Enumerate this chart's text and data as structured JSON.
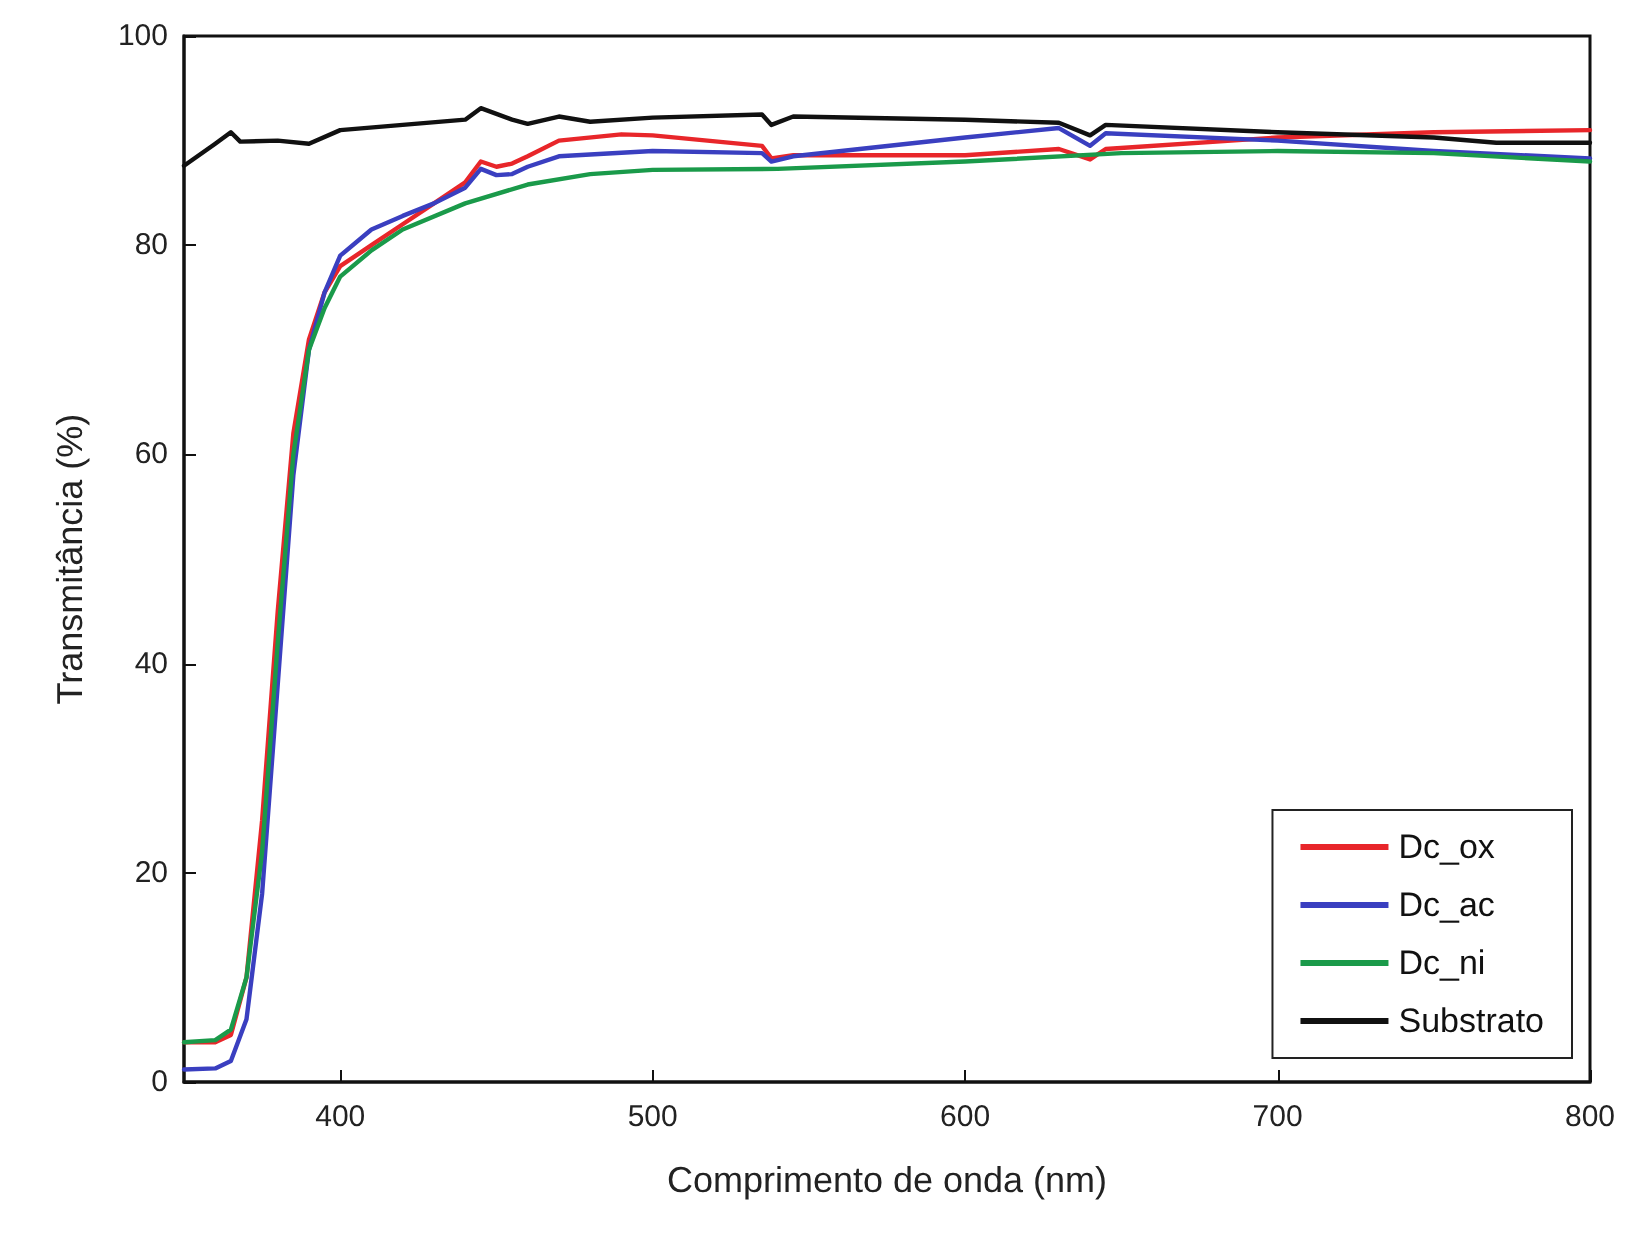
{
  "chart_data": {
    "type": "line",
    "xlabel": "Comprimento de onda (nm)",
    "ylabel": "Transmitância (%)",
    "xlim": [
      350,
      800
    ],
    "xticks": [
      400,
      500,
      600,
      700,
      800
    ],
    "ylim": [
      0,
      100
    ],
    "yticks": [
      0,
      20,
      40,
      60,
      80,
      100
    ],
    "grid": false,
    "legend": "bottom right",
    "marker": "none",
    "line_style": "solid",
    "series": [
      {
        "name": "Dc_ox",
        "color": "#e8262a",
        "x": [
          350,
          360,
          365,
          370,
          375,
          380,
          385,
          390,
          395,
          400,
          410,
          420,
          430,
          440,
          445,
          450,
          455,
          460,
          470,
          490,
          500,
          535,
          538,
          545,
          600,
          630,
          640,
          645,
          700,
          750,
          800
        ],
        "values": [
          3.8,
          3.8,
          4.5,
          10,
          25,
          45,
          62,
          71,
          75.5,
          78,
          80,
          82,
          84,
          86,
          88,
          87.5,
          87.8,
          88.5,
          90,
          90.6,
          90.5,
          89.5,
          88.3,
          88.6,
          88.6,
          89.2,
          88.2,
          89.2,
          90.3,
          90.8,
          91
        ]
      },
      {
        "name": "Dc_ac",
        "color": "#3a3fc0",
        "x": [
          350,
          360,
          365,
          370,
          375,
          380,
          385,
          390,
          395,
          400,
          410,
          420,
          430,
          440,
          445,
          450,
          455,
          460,
          470,
          500,
          535,
          538,
          545,
          600,
          630,
          640,
          645,
          700,
          750,
          800
        ],
        "values": [
          1.2,
          1.3,
          2,
          6,
          18,
          38,
          58,
          70,
          75.5,
          79,
          81.5,
          82.8,
          84,
          85.5,
          87.3,
          86.7,
          86.8,
          87.5,
          88.5,
          89,
          88.8,
          88,
          88.5,
          90.3,
          91.2,
          89.5,
          90.7,
          90,
          89,
          88.3
        ]
      },
      {
        "name": "Dc_ni",
        "color": "#1a9a4a",
        "x": [
          350,
          360,
          365,
          370,
          375,
          380,
          385,
          390,
          395,
          400,
          410,
          420,
          440,
          460,
          480,
          500,
          540,
          600,
          650,
          700,
          750,
          800
        ],
        "values": [
          3.8,
          4,
          5,
          10,
          22,
          42,
          60,
          70,
          74,
          77,
          79.5,
          81.5,
          84,
          85.8,
          86.8,
          87.2,
          87.3,
          88,
          88.8,
          89,
          88.8,
          88
        ]
      },
      {
        "name": "Substrato",
        "color": "#111111",
        "x": [
          350,
          360,
          365,
          368,
          380,
          390,
          400,
          420,
          440,
          445,
          455,
          460,
          470,
          480,
          500,
          535,
          538,
          545,
          600,
          630,
          640,
          645,
          700,
          750,
          770,
          800
        ],
        "values": [
          87.6,
          89.7,
          90.8,
          89.9,
          90,
          89.7,
          91,
          91.5,
          92,
          93.1,
          92,
          91.6,
          92.3,
          91.8,
          92.2,
          92.5,
          91.5,
          92.3,
          92,
          91.7,
          90.5,
          91.5,
          90.8,
          90.3,
          89.8,
          89.8
        ]
      }
    ]
  }
}
